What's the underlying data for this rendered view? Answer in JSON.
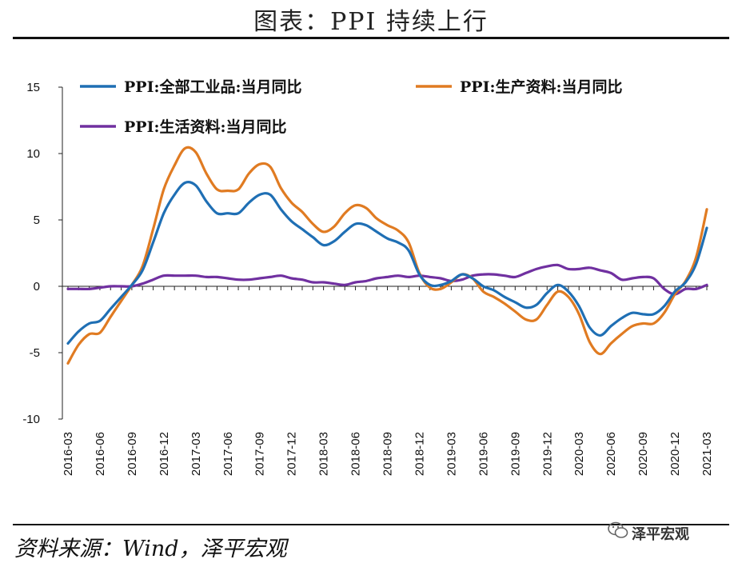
{
  "header": {
    "title": "图表：PPI 持续上行"
  },
  "footer": {
    "source": "资料来源：Wind，泽平宏观",
    "watermark": "泽平宏观",
    "watermark_icon": "wechat-icon"
  },
  "chart_data": {
    "type": "line",
    "title": "图表：PPI 持续上行",
    "xlabel": "",
    "ylabel": "",
    "ylim": [
      -10,
      15
    ],
    "yticks": [
      -10,
      -5,
      0,
      5,
      10,
      15
    ],
    "ytick_labels": [
      "-10",
      "-5",
      "0",
      "5",
      "10",
      "15"
    ],
    "grid": false,
    "legend_position": "top",
    "x": [
      "2016-03",
      "2016-04",
      "2016-05",
      "2016-06",
      "2016-07",
      "2016-08",
      "2016-09",
      "2016-10",
      "2016-11",
      "2016-12",
      "2017-01",
      "2017-02",
      "2017-03",
      "2017-04",
      "2017-05",
      "2017-06",
      "2017-07",
      "2017-08",
      "2017-09",
      "2017-10",
      "2017-11",
      "2017-12",
      "2018-01",
      "2018-02",
      "2018-03",
      "2018-04",
      "2018-05",
      "2018-06",
      "2018-07",
      "2018-08",
      "2018-09",
      "2018-10",
      "2018-11",
      "2018-12",
      "2019-01",
      "2019-02",
      "2019-03",
      "2019-04",
      "2019-05",
      "2019-06",
      "2019-07",
      "2019-08",
      "2019-09",
      "2019-10",
      "2019-11",
      "2019-12",
      "2020-01",
      "2020-02",
      "2020-03",
      "2020-04",
      "2020-05",
      "2020-06",
      "2020-07",
      "2020-08",
      "2020-09",
      "2020-10",
      "2020-11",
      "2020-12",
      "2021-01",
      "2021-02",
      "2021-03"
    ],
    "xtick_labels": [
      "2016-03",
      "2016-06",
      "2016-09",
      "2016-12",
      "2017-03",
      "2017-06",
      "2017-09",
      "2017-12",
      "2018-03",
      "2018-06",
      "2018-09",
      "2018-12",
      "2019-03",
      "2019-06",
      "2019-09",
      "2019-12",
      "2020-03",
      "2020-06",
      "2020-09",
      "2020-12",
      "2021-03"
    ],
    "series": [
      {
        "name": "PPI:全部工业品:当月同比",
        "color": "#1f6fb4",
        "values": [
          -4.3,
          -3.4,
          -2.8,
          -2.6,
          -1.7,
          -0.8,
          0.1,
          1.2,
          3.3,
          5.5,
          6.9,
          7.8,
          7.6,
          6.4,
          5.5,
          5.5,
          5.5,
          6.3,
          6.9,
          6.9,
          5.8,
          4.9,
          4.3,
          3.7,
          3.1,
          3.4,
          4.1,
          4.7,
          4.6,
          4.1,
          3.6,
          3.3,
          2.7,
          0.9,
          0.1,
          0.1,
          0.4,
          0.9,
          0.6,
          0.0,
          -0.3,
          -0.8,
          -1.2,
          -1.6,
          -1.4,
          -0.5,
          0.1,
          -0.4,
          -1.5,
          -3.1,
          -3.7,
          -3.0,
          -2.4,
          -2.0,
          -2.1,
          -2.1,
          -1.5,
          -0.4,
          0.3,
          1.7,
          4.4
        ]
      },
      {
        "name": "PPI:生产资料:当月同比",
        "color": "#e07b22",
        "values": [
          -5.8,
          -4.4,
          -3.6,
          -3.5,
          -2.3,
          -1.1,
          0.1,
          1.5,
          4.3,
          7.3,
          9.1,
          10.4,
          10.1,
          8.5,
          7.3,
          7.2,
          7.3,
          8.5,
          9.2,
          9.0,
          7.4,
          6.3,
          5.6,
          4.7,
          4.1,
          4.5,
          5.5,
          6.1,
          5.9,
          5.1,
          4.6,
          4.2,
          3.3,
          1.0,
          -0.1,
          -0.2,
          0.3,
          0.9,
          0.6,
          -0.4,
          -0.8,
          -1.3,
          -1.9,
          -2.5,
          -2.5,
          -1.4,
          -0.4,
          -0.8,
          -2.1,
          -4.2,
          -5.1,
          -4.3,
          -3.6,
          -3.0,
          -2.8,
          -2.8,
          -2.0,
          -0.6,
          0.4,
          2.2,
          5.8
        ]
      },
      {
        "name": "PPI:生活资料:当月同比",
        "color": "#7030a0",
        "values": [
          -0.2,
          -0.2,
          -0.2,
          -0.1,
          0.0,
          0.0,
          0.0,
          0.2,
          0.5,
          0.8,
          0.8,
          0.8,
          0.8,
          0.7,
          0.7,
          0.6,
          0.5,
          0.5,
          0.6,
          0.7,
          0.8,
          0.6,
          0.5,
          0.3,
          0.3,
          0.2,
          0.1,
          0.3,
          0.4,
          0.6,
          0.7,
          0.8,
          0.7,
          0.8,
          0.7,
          0.6,
          0.4,
          0.5,
          0.8,
          0.9,
          0.9,
          0.8,
          0.7,
          1.0,
          1.3,
          1.5,
          1.6,
          1.3,
          1.3,
          1.4,
          1.2,
          1.0,
          0.5,
          0.6,
          0.7,
          0.6,
          -0.2,
          -0.6,
          -0.2,
          -0.2,
          0.1
        ]
      }
    ]
  }
}
